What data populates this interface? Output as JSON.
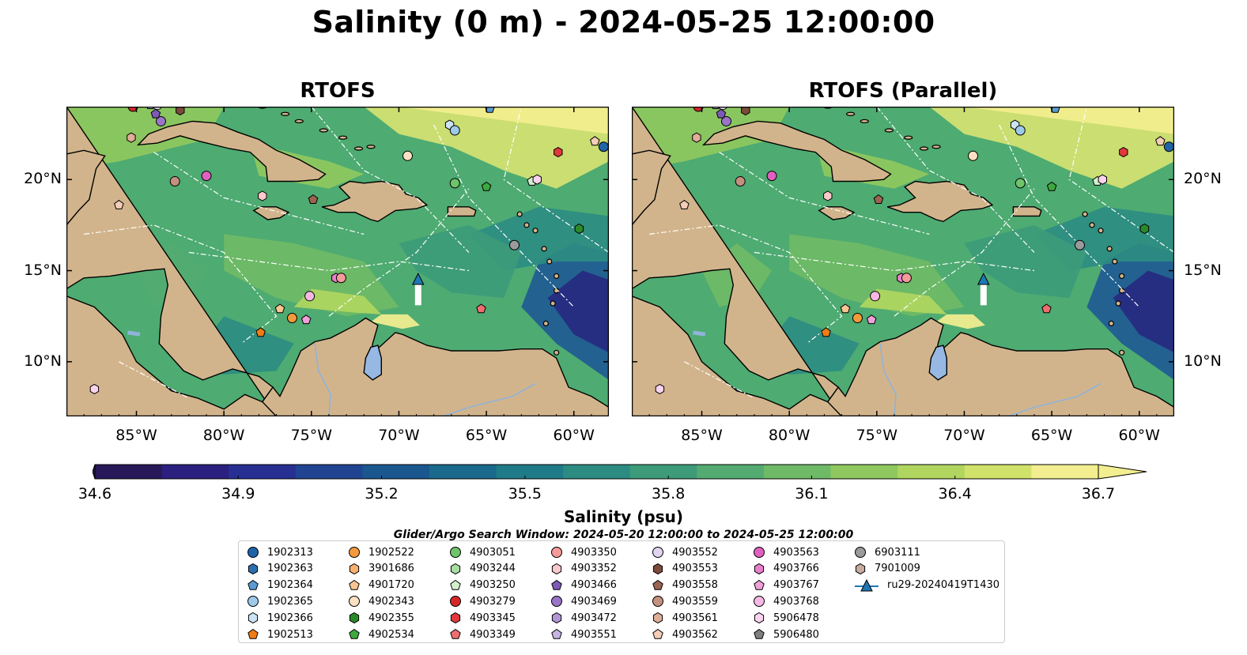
{
  "title": "Salinity (0 m) - 2024-05-25 12:00:00",
  "panels": [
    {
      "title": "RTOFS"
    },
    {
      "title": "RTOFS (Parallel)"
    }
  ],
  "colorbar": {
    "label": "Salinity (psu)",
    "ticks": [
      "34.6",
      "34.9",
      "35.2",
      "35.5",
      "35.8",
      "36.1",
      "36.4",
      "36.7"
    ],
    "range": [
      34.6,
      36.7
    ],
    "colors": [
      "#27185a",
      "#2b1f7f",
      "#272f93",
      "#204492",
      "#1b578f",
      "#196a8c",
      "#1f7b87",
      "#2c8c82",
      "#3d9b7a",
      "#53ab71",
      "#6fba66",
      "#8fc85e",
      "#b0d65f",
      "#d1e26b",
      "#f3ee8f"
    ],
    "extend": "both"
  },
  "search_window": "Glider/Argo Search Window: 2024-05-20 12:00:00 to 2024-05-25 12:00:00",
  "legend": {
    "entries": [
      {
        "label": "1902313",
        "marker": "circle",
        "color": "#1f63a8"
      },
      {
        "label": "1902363",
        "marker": "hexagon",
        "color": "#2c6fb0"
      },
      {
        "label": "1902364",
        "marker": "pentagon",
        "color": "#5b9bd2"
      },
      {
        "label": "1902365",
        "marker": "circle",
        "color": "#9ecae9"
      },
      {
        "label": "1902366",
        "marker": "hexagon",
        "color": "#cbe4f5"
      },
      {
        "label": "1902513",
        "marker": "pentagon",
        "color": "#f07c14"
      },
      {
        "label": "1902522",
        "marker": "circle",
        "color": "#f59a3c"
      },
      {
        "label": "3901686",
        "marker": "hexagon",
        "color": "#f8b070"
      },
      {
        "label": "4901720",
        "marker": "pentagon",
        "color": "#f9c590"
      },
      {
        "label": "4902343",
        "marker": "circle",
        "color": "#fbe0c2"
      },
      {
        "label": "4902355",
        "marker": "hexagon",
        "color": "#2a8a2a"
      },
      {
        "label": "4902534",
        "marker": "pentagon",
        "color": "#3fa83f"
      },
      {
        "label": "4903051",
        "marker": "circle",
        "color": "#6fc46a"
      },
      {
        "label": "4903244",
        "marker": "hexagon",
        "color": "#a6dea0"
      },
      {
        "label": "4903250",
        "marker": "pentagon",
        "color": "#d3f0cd"
      },
      {
        "label": "4903279",
        "marker": "circle",
        "color": "#d62728"
      },
      {
        "label": "4903345",
        "marker": "hexagon",
        "color": "#e0393d"
      },
      {
        "label": "4903349",
        "marker": "pentagon",
        "color": "#ee6e6f"
      },
      {
        "label": "4903350",
        "marker": "circle",
        "color": "#f59a9a"
      },
      {
        "label": "4903352",
        "marker": "hexagon",
        "color": "#fbc9c9"
      },
      {
        "label": "4903466",
        "marker": "pentagon",
        "color": "#7f59b8"
      },
      {
        "label": "4903469",
        "marker": "circle",
        "color": "#9a74c8"
      },
      {
        "label": "4903472",
        "marker": "hexagon",
        "color": "#b196d6"
      },
      {
        "label": "4903551",
        "marker": "pentagon",
        "color": "#c8b4e3"
      },
      {
        "label": "4903552",
        "marker": "circle",
        "color": "#e2d4ef"
      },
      {
        "label": "4903553",
        "marker": "hexagon",
        "color": "#7b4a3a"
      },
      {
        "label": "4903558",
        "marker": "pentagon",
        "color": "#9b6450"
      },
      {
        "label": "4903559",
        "marker": "circle",
        "color": "#c49080"
      },
      {
        "label": "4903561",
        "marker": "hexagon",
        "color": "#e0ad98"
      },
      {
        "label": "4903562",
        "marker": "pentagon",
        "color": "#f4cdb8"
      },
      {
        "label": "4903563",
        "marker": "circle",
        "color": "#e060c0"
      },
      {
        "label": "4903766",
        "marker": "hexagon",
        "color": "#e880cc"
      },
      {
        "label": "4903767",
        "marker": "pentagon",
        "color": "#f0a0da"
      },
      {
        "label": "4903768",
        "marker": "circle",
        "color": "#f6b8e4"
      },
      {
        "label": "5906478",
        "marker": "hexagon",
        "color": "#fad3ee"
      },
      {
        "label": "5906480",
        "marker": "pentagon",
        "color": "#7f7f7f"
      },
      {
        "label": "6903111",
        "marker": "circle",
        "color": "#9a9a9a"
      },
      {
        "label": "7901009",
        "marker": "hexagon",
        "color": "#c7aaa0"
      },
      {
        "label": "ru29-20240419T1430",
        "marker": "glider",
        "color": "#1f77b4"
      }
    ]
  },
  "chart_data": {
    "type": "map-contourf",
    "variable": "Salinity (0 m)",
    "units": "psu",
    "lon_range": [
      -89,
      -58
    ],
    "lat_range": [
      7,
      24
    ],
    "xticks": [
      "85°W",
      "80°W",
      "75°W",
      "70°W",
      "65°W",
      "60°W"
    ],
    "xtick_values": [
      -85,
      -80,
      -75,
      -70,
      -65,
      -60
    ],
    "yticks": [
      "10°N",
      "15°N",
      "20°N"
    ],
    "ytick_values": [
      10,
      15,
      20
    ],
    "floats": [
      {
        "id": "1902313",
        "lon": -58.3,
        "lat": 21.8
      },
      {
        "id": "4903562",
        "lon": -58.8,
        "lat": 22.1
      },
      {
        "id": "1902364",
        "lon": -64.8,
        "lat": 23.9
      },
      {
        "id": "1902366",
        "lon": -67.1,
        "lat": 23.0
      },
      {
        "id": "1902365",
        "lon": -66.8,
        "lat": 22.7
      },
      {
        "id": "4902343",
        "lon": -69.5,
        "lat": 21.3
      },
      {
        "id": "4903345",
        "lon": -60.9,
        "lat": 21.5
      },
      {
        "id": "4903051",
        "lon": -66.8,
        "lat": 19.8
      },
      {
        "id": "4902534",
        "lon": -65.0,
        "lat": 19.6
      },
      {
        "id": "4903250",
        "lon": -62.4,
        "lat": 19.9
      },
      {
        "id": "5906478",
        "lon": -62.1,
        "lat": 20.0
      },
      {
        "id": "4902355",
        "lon": -59.7,
        "lat": 17.3
      },
      {
        "id": "6903111",
        "lon": -63.4,
        "lat": 16.4
      },
      {
        "id": "4903349",
        "lon": -65.3,
        "lat": 12.9
      },
      {
        "id": "4903558",
        "lon": -74.9,
        "lat": 18.9
      },
      {
        "id": "4903352",
        "lon": -77.8,
        "lat": 19.1
      },
      {
        "id": "4903563",
        "lon": -81.0,
        "lat": 20.2
      },
      {
        "id": "4903559",
        "lon": -82.8,
        "lat": 19.9
      },
      {
        "id": "4903562b",
        "lon": -86.0,
        "lat": 18.6
      },
      {
        "id": "4903553",
        "lon": -82.5,
        "lat": 23.8
      },
      {
        "id": "4903469",
        "lon": -83.6,
        "lat": 23.2
      },
      {
        "id": "4903466",
        "lon": -83.9,
        "lat": 23.6
      },
      {
        "id": "4903551",
        "lon": -84.2,
        "lat": 24.1
      },
      {
        "id": "4903552",
        "lon": -83.8,
        "lat": 24.1
      },
      {
        "id": "4903279",
        "lon": -85.2,
        "lat": 24.0
      },
      {
        "id": "4903561",
        "lon": -85.3,
        "lat": 22.3
      },
      {
        "id": "4903766",
        "lon": -73.6,
        "lat": 14.6
      },
      {
        "id": "4903350",
        "lon": -73.3,
        "lat": 14.6
      },
      {
        "id": "4903768",
        "lon": -75.1,
        "lat": 13.6
      },
      {
        "id": "4901720",
        "lon": -76.8,
        "lat": 12.9
      },
      {
        "id": "1902522",
        "lon": -76.1,
        "lat": 12.4
      },
      {
        "id": "4903767",
        "lon": -75.3,
        "lat": 12.3
      },
      {
        "id": "1902513",
        "lon": -77.9,
        "lat": 11.6
      },
      {
        "id": "5906478b",
        "lon": -87.4,
        "lat": 8.5
      }
    ],
    "glider": {
      "id": "ru29-20240419T1430",
      "lon": -68.9,
      "lat": 14.5,
      "track_end_lat": 13.1
    }
  }
}
